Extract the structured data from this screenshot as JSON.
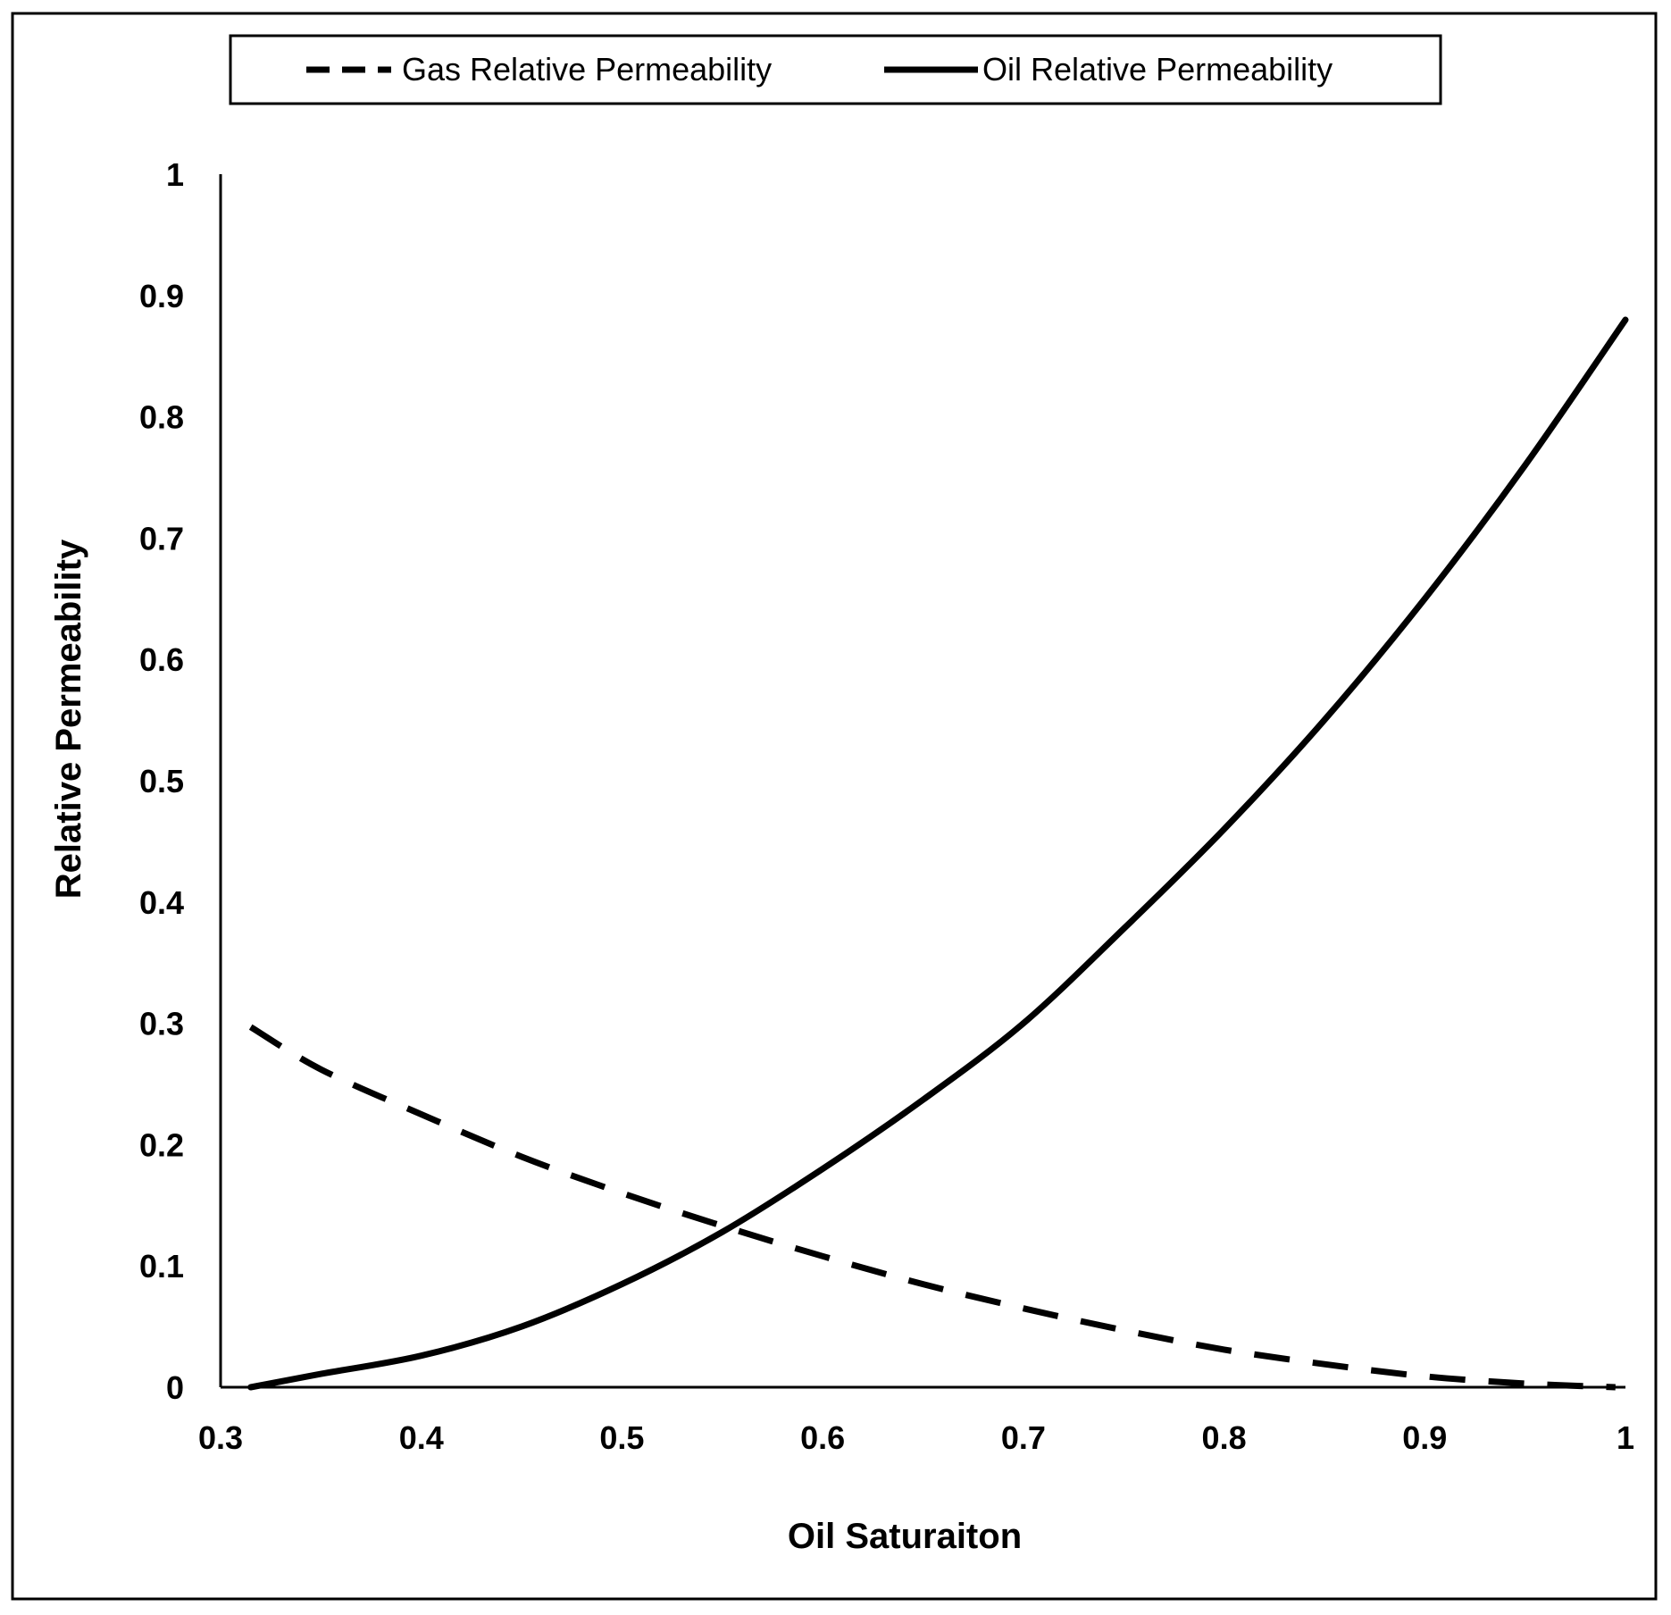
{
  "chart_data": {
    "type": "line",
    "title": "",
    "xlabel": "Oil Saturaiton",
    "ylabel": "Relative Permeability",
    "xlim": [
      0.3,
      1.0
    ],
    "ylim": [
      0,
      1.0
    ],
    "x_ticks": [
      0.3,
      0.4,
      0.5,
      0.6,
      0.7,
      0.8,
      0.9,
      1.0
    ],
    "x_tick_labels": [
      "0.3",
      "0.4",
      "0.5",
      "0.6",
      "0.7",
      "0.8",
      "0.9",
      "1"
    ],
    "y_ticks": [
      0,
      0.1,
      0.2,
      0.3,
      0.4,
      0.5,
      0.6,
      0.7,
      0.8,
      0.9,
      1.0
    ],
    "y_tick_labels": [
      "0",
      "0.1",
      "0.2",
      "0.3",
      "0.4",
      "0.5",
      "0.6",
      "0.7",
      "0.8",
      "0.9",
      "1"
    ],
    "grid": false,
    "legend_position": "top",
    "series": [
      {
        "name": "Gas Relative Permeability",
        "style": "dashed",
        "color": "#000000",
        "x": [
          0.315,
          0.35,
          0.4,
          0.45,
          0.5,
          0.55,
          0.6,
          0.65,
          0.7,
          0.75,
          0.8,
          0.85,
          0.9,
          0.95,
          0.995
        ],
        "y": [
          0.297,
          0.262,
          0.225,
          0.19,
          0.16,
          0.133,
          0.108,
          0.085,
          0.065,
          0.047,
          0.031,
          0.019,
          0.009,
          0.003,
          0.0
        ]
      },
      {
        "name": "Oil Relative Permeability",
        "style": "solid",
        "color": "#000000",
        "x": [
          0.315,
          0.35,
          0.4,
          0.45,
          0.5,
          0.55,
          0.6,
          0.65,
          0.7,
          0.75,
          0.8,
          0.85,
          0.9,
          0.95,
          1.0
        ],
        "y": [
          0.0,
          0.011,
          0.026,
          0.05,
          0.085,
          0.128,
          0.18,
          0.237,
          0.3,
          0.378,
          0.46,
          0.55,
          0.65,
          0.76,
          0.88
        ]
      }
    ]
  }
}
